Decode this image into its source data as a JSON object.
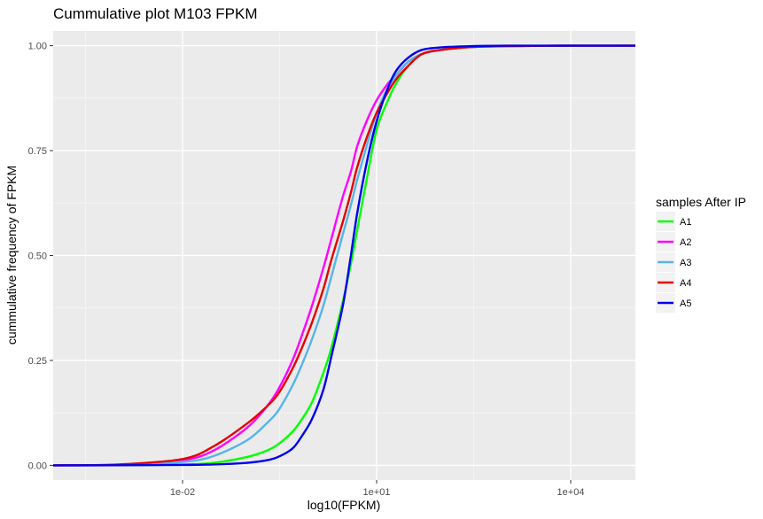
{
  "chart_data": {
    "type": "line",
    "title": "Cummulative plot M103 FPKM",
    "xlabel": "log10(FPKM)",
    "ylabel": "cummulative frequency of FPKM",
    "x_scale": "log10",
    "xlim": [
      0.0001,
      100000
    ],
    "ylim": [
      -0.035,
      1.035
    ],
    "x_ticks": [
      {
        "value": 0.01,
        "label": "1e-02"
      },
      {
        "value": 10,
        "label": "1e+01"
      },
      {
        "value": 10000,
        "label": "1e+04"
      }
    ],
    "y_ticks": [
      {
        "value": 0.0,
        "label": "0.00"
      },
      {
        "value": 0.25,
        "label": "0.25"
      },
      {
        "value": 0.5,
        "label": "0.50"
      },
      {
        "value": 0.75,
        "label": "0.75"
      },
      {
        "value": 1.0,
        "label": "1.00"
      }
    ],
    "grid": true,
    "legend": {
      "title": "samples After IP",
      "position": "right"
    },
    "series": [
      {
        "name": "A1",
        "color": "#00ff00",
        "x": [
          0.0001,
          0.001,
          0.01,
          0.03,
          0.1,
          0.2,
          0.3,
          0.5,
          0.7,
          1,
          1.5,
          2,
          3,
          4,
          5,
          7,
          10,
          15,
          20,
          30,
          50,
          100,
          300,
          1000,
          10000,
          100000
        ],
        "y": [
          0,
          0.0005,
          0.002,
          0.006,
          0.02,
          0.035,
          0.05,
          0.08,
          0.11,
          0.15,
          0.22,
          0.28,
          0.39,
          0.48,
          0.56,
          0.68,
          0.8,
          0.87,
          0.91,
          0.95,
          0.98,
          0.99,
          0.997,
          0.999,
          1,
          1
        ]
      },
      {
        "name": "A2",
        "color": "#ff00ff",
        "x": [
          0.0001,
          0.001,
          0.01,
          0.03,
          0.1,
          0.2,
          0.3,
          0.5,
          0.7,
          1,
          1.5,
          2,
          3,
          4,
          5,
          7,
          10,
          15,
          20,
          30,
          50,
          100,
          300,
          1000,
          10000,
          100000
        ],
        "y": [
          0,
          0.001,
          0.012,
          0.035,
          0.09,
          0.14,
          0.18,
          0.25,
          0.31,
          0.38,
          0.47,
          0.54,
          0.64,
          0.7,
          0.76,
          0.82,
          0.87,
          0.91,
          0.93,
          0.96,
          0.98,
          0.99,
          0.997,
          0.999,
          1,
          1
        ]
      },
      {
        "name": "A3",
        "color": "#56b4e9",
        "x": [
          0.0001,
          0.001,
          0.01,
          0.03,
          0.1,
          0.2,
          0.3,
          0.5,
          0.7,
          1,
          1.5,
          2,
          3,
          4,
          5,
          7,
          10,
          15,
          20,
          30,
          50,
          100,
          300,
          1000,
          10000,
          100000
        ],
        "y": [
          0,
          0.0008,
          0.008,
          0.022,
          0.06,
          0.1,
          0.13,
          0.19,
          0.24,
          0.3,
          0.38,
          0.45,
          0.55,
          0.62,
          0.68,
          0.76,
          0.84,
          0.9,
          0.93,
          0.96,
          0.98,
          0.99,
          0.997,
          0.999,
          1,
          1
        ]
      },
      {
        "name": "A4",
        "color": "#e60000",
        "x": [
          0.0001,
          0.001,
          0.01,
          0.03,
          0.1,
          0.2,
          0.3,
          0.5,
          0.7,
          1,
          1.5,
          2,
          3,
          4,
          5,
          7,
          10,
          15,
          20,
          30,
          50,
          100,
          300,
          1000,
          10000,
          100000
        ],
        "y": [
          0,
          0.002,
          0.015,
          0.045,
          0.1,
          0.14,
          0.17,
          0.23,
          0.28,
          0.34,
          0.42,
          0.49,
          0.58,
          0.65,
          0.71,
          0.78,
          0.84,
          0.89,
          0.92,
          0.95,
          0.98,
          0.99,
          0.997,
          0.999,
          1,
          1
        ]
      },
      {
        "name": "A5",
        "color": "#0000ee",
        "x": [
          0.0001,
          0.001,
          0.01,
          0.03,
          0.1,
          0.2,
          0.3,
          0.5,
          0.7,
          1,
          1.5,
          2,
          3,
          4,
          5,
          7,
          10,
          15,
          20,
          30,
          50,
          100,
          300,
          1000,
          10000,
          100000
        ],
        "y": [
          0,
          0.0002,
          0.001,
          0.002,
          0.006,
          0.012,
          0.02,
          0.04,
          0.07,
          0.11,
          0.18,
          0.26,
          0.38,
          0.5,
          0.6,
          0.72,
          0.82,
          0.9,
          0.94,
          0.97,
          0.99,
          0.996,
          0.999,
          1,
          1,
          1
        ]
      }
    ]
  }
}
